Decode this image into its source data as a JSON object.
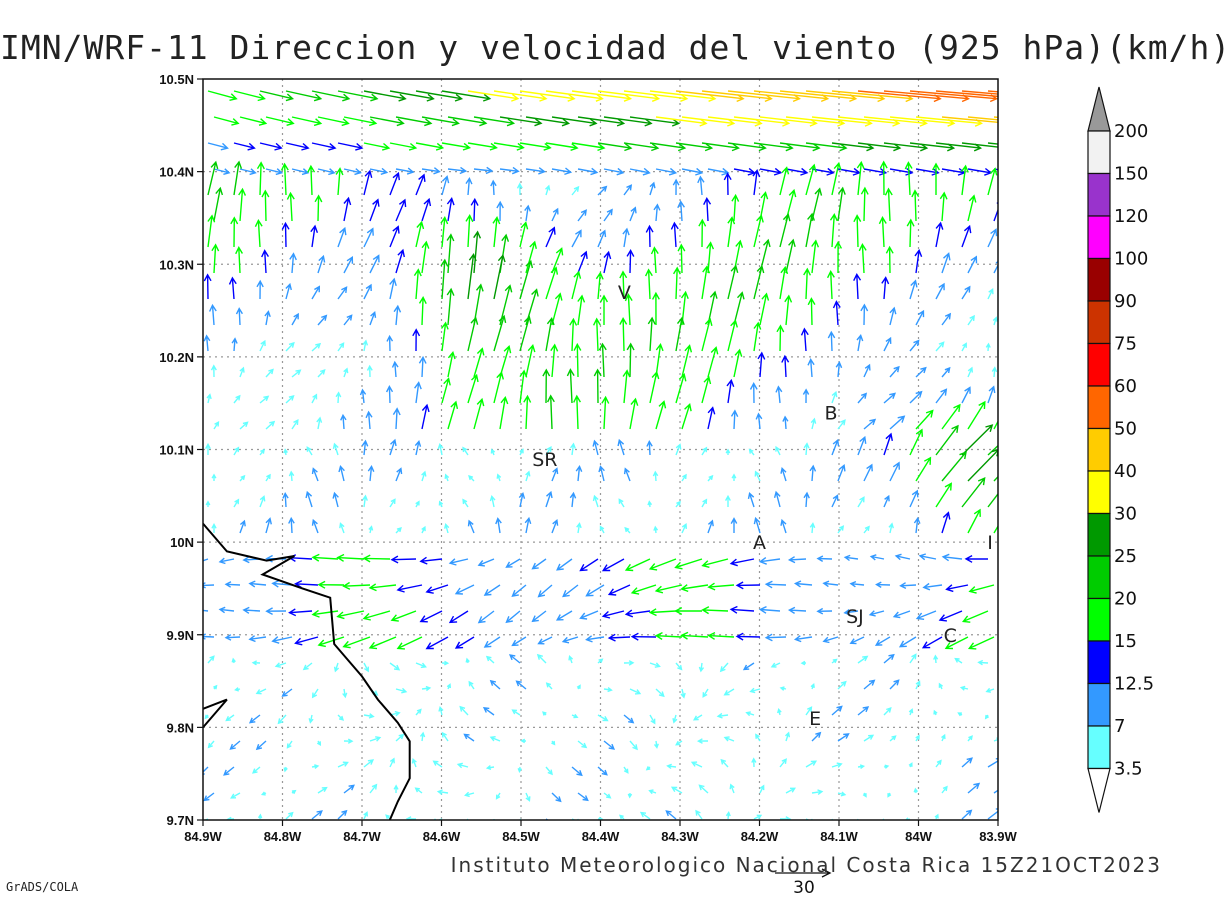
{
  "title": "IMN/WRF-11 Direccion y velocidad del viento (925 hPa)(km/h)",
  "credit": "Instituto Meteorologico Nacional Costa Rica 15Z21OCT2023",
  "software": "GrADS/COLA",
  "reference_vector": {
    "label": "30",
    "speed": 30
  },
  "map": {
    "extent": {
      "lon": [
        -84.9,
        -83.9
      ],
      "lat": [
        9.7,
        10.5
      ]
    },
    "x_ticks": [
      {
        "lon": -84.9,
        "label": "84.9W"
      },
      {
        "lon": -84.8,
        "label": "84.8W"
      },
      {
        "lon": -84.7,
        "label": "84.7W"
      },
      {
        "lon": -84.6,
        "label": "84.6W"
      },
      {
        "lon": -84.5,
        "label": "84.5W"
      },
      {
        "lon": -84.4,
        "label": "84.4W"
      },
      {
        "lon": -84.3,
        "label": "84.3W"
      },
      {
        "lon": -84.2,
        "label": "84.2W"
      },
      {
        "lon": -84.1,
        "label": "84.1W"
      },
      {
        "lon": -84.0,
        "label": "84W"
      },
      {
        "lon": -83.9,
        "label": "83.9W"
      }
    ],
    "y_ticks": [
      {
        "lat": 10.5,
        "label": "10.5N"
      },
      {
        "lat": 10.4,
        "label": "10.4N"
      },
      {
        "lat": 10.3,
        "label": "10.3N"
      },
      {
        "lat": 10.2,
        "label": "10.2N"
      },
      {
        "lat": 10.1,
        "label": "10.1N"
      },
      {
        "lat": 10.0,
        "label": "10N"
      },
      {
        "lat": 9.9,
        "label": "9.9N"
      },
      {
        "lat": 9.8,
        "label": "9.8N"
      },
      {
        "lat": 9.7,
        "label": "9.7N"
      }
    ],
    "places": [
      {
        "label": "V",
        "lon": -84.37,
        "lat": 10.27
      },
      {
        "label": "SR",
        "lon": -84.47,
        "lat": 10.09
      },
      {
        "label": "B",
        "lon": -84.11,
        "lat": 10.14
      },
      {
        "label": "A",
        "lon": -84.2,
        "lat": 10.0
      },
      {
        "label": "I",
        "lon": -83.91,
        "lat": 10.0
      },
      {
        "label": "SJ",
        "lon": -84.08,
        "lat": 9.92
      },
      {
        "label": "C",
        "lon": -83.96,
        "lat": 9.9
      },
      {
        "label": "E",
        "lon": -84.13,
        "lat": 9.81
      }
    ],
    "coastline": [
      [
        -84.9,
        10.02
      ],
      [
        -84.87,
        9.99
      ],
      [
        -84.82,
        9.98
      ],
      [
        -84.785,
        9.985
      ],
      [
        -84.825,
        9.965
      ],
      [
        -84.775,
        9.95
      ],
      [
        -84.74,
        9.94
      ],
      [
        -84.735,
        9.89
      ],
      [
        -84.72,
        9.875
      ],
      [
        -84.7,
        9.855
      ],
      [
        -84.68,
        9.83
      ],
      [
        -84.655,
        9.805
      ],
      [
        -84.64,
        9.785
      ],
      [
        -84.64,
        9.745
      ],
      [
        -84.655,
        9.72
      ],
      [
        -84.665,
        9.7
      ]
    ],
    "coastline_sw": [
      [
        -84.9,
        9.8
      ],
      [
        -84.87,
        9.83
      ],
      [
        -84.9,
        9.82
      ]
    ]
  },
  "colorbar": {
    "labels": [
      "3.5",
      "7",
      "12.5",
      "15",
      "20",
      "25",
      "30",
      "40",
      "50",
      "60",
      "75",
      "90",
      "100",
      "120",
      "150",
      "200"
    ],
    "colors": [
      "#66ffff",
      "#3399ff",
      "#0000ff",
      "#00ff00",
      "#00cc00",
      "#009900",
      "#ffff00",
      "#ffcc00",
      "#ff6600",
      "#ff0000",
      "#cc3300",
      "#990000",
      "#ff00ff",
      "#9933cc",
      "#f2f2f2",
      "#999999"
    ],
    "below_color": "#ffffff"
  }
}
